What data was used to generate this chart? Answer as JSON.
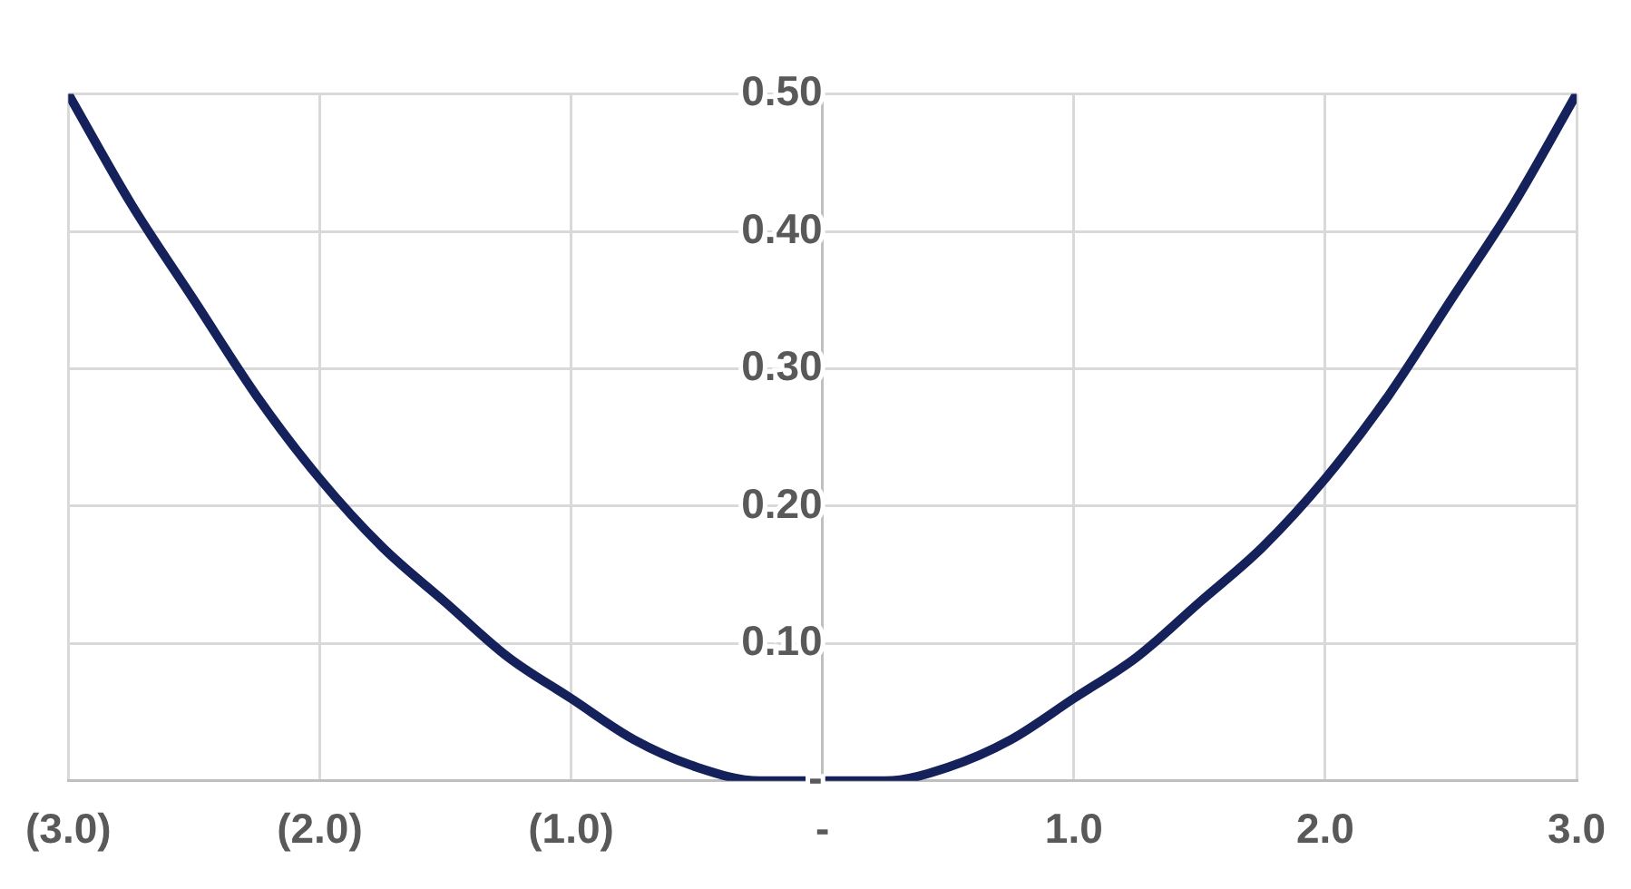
{
  "chart_data": {
    "type": "line",
    "x": [
      -3,
      -2.75,
      -2.5,
      -2.25,
      -2,
      -1.75,
      -1.5,
      -1.25,
      -1,
      -0.75,
      -0.5,
      -0.25,
      0,
      0.25,
      0.5,
      0.75,
      1,
      1.25,
      1.5,
      1.75,
      2,
      2.25,
      2.5,
      2.75,
      3
    ],
    "series": [
      {
        "color": "#14215a",
        "values": [
          0.5,
          0.42,
          0.35,
          0.28,
          0.22,
          0.17,
          0.13,
          0.09,
          0.06,
          0.03,
          0.01,
          0.0,
          0,
          0.0,
          0.01,
          0.03,
          0.06,
          0.09,
          0.13,
          0.17,
          0.22,
          0.28,
          0.35,
          0.42,
          0.5
        ]
      }
    ],
    "xlim": [
      -3,
      3
    ],
    "xticks": [
      {
        "value": -3,
        "label": "(3.0)"
      },
      {
        "value": -2,
        "label": "(2.0)"
      },
      {
        "value": -1,
        "label": "(1.0)"
      },
      {
        "value": 0,
        "label": "-"
      },
      {
        "value": 1,
        "label": "1.0"
      },
      {
        "value": 2,
        "label": "2.0"
      },
      {
        "value": 3,
        "label": "3.0"
      }
    ],
    "ylim": [
      0,
      0.5
    ],
    "yticks": [
      {
        "value": 0,
        "label": "-"
      },
      {
        "value": 0.1,
        "label": "0.10"
      },
      {
        "value": 0.2,
        "label": "0.20"
      },
      {
        "value": 0.3,
        "label": "0.30"
      },
      {
        "value": 0.4,
        "label": "0.40"
      },
      {
        "value": 0.5,
        "label": "0.50"
      }
    ],
    "grid": true,
    "marker": "none",
    "line_style": "solid",
    "legend": false
  }
}
